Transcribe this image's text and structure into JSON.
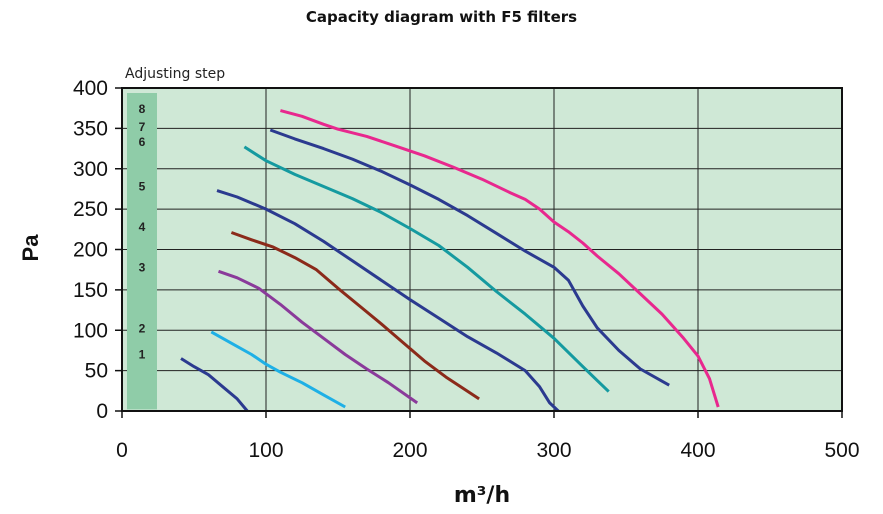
{
  "chart_data": {
    "type": "line",
    "title": "Capacity diagram with F5 filters",
    "xlabel": "m³/h",
    "ylabel": "Pa",
    "xlim": [
      0,
      500
    ],
    "ylim": [
      0,
      400
    ],
    "xticks": [
      "0",
      "100",
      "200",
      "300",
      "400",
      "500"
    ],
    "yticks": [
      "0",
      "50",
      "100",
      "150",
      "200",
      "250",
      "300",
      "350",
      "400"
    ],
    "grid": true,
    "background_color": "#cfe8d6",
    "adjusting_step": {
      "label": "Adjusting step",
      "bar_color": "#8fcca8",
      "steps": [
        {
          "label": "1",
          "y": 70
        },
        {
          "label": "2",
          "y": 102
        },
        {
          "label": "3",
          "y": 178
        },
        {
          "label": "4",
          "y": 228
        },
        {
          "label": "5",
          "y": 278
        },
        {
          "label": "6",
          "y": 333
        },
        {
          "label": "7",
          "y": 352
        },
        {
          "label": "8",
          "y": 374
        }
      ]
    },
    "series": [
      {
        "color": "#2b3a8f",
        "points": [
          [
            41,
            65
          ],
          [
            50,
            55
          ],
          [
            60,
            45
          ],
          [
            70,
            30
          ],
          [
            80,
            15
          ],
          [
            87,
            0
          ]
        ]
      },
      {
        "color": "#1eb0e6",
        "points": [
          [
            62,
            98
          ],
          [
            75,
            85
          ],
          [
            90,
            70
          ],
          [
            100,
            58
          ],
          [
            110,
            48
          ],
          [
            125,
            35
          ],
          [
            140,
            20
          ],
          [
            155,
            5
          ]
        ]
      },
      {
        "color": "#8a3a9a",
        "points": [
          [
            67,
            173
          ],
          [
            80,
            165
          ],
          [
            95,
            152
          ],
          [
            110,
            132
          ],
          [
            125,
            110
          ],
          [
            140,
            90
          ],
          [
            155,
            70
          ],
          [
            170,
            52
          ],
          [
            185,
            35
          ],
          [
            205,
            10
          ]
        ]
      },
      {
        "color": "#8b2a1a",
        "points": [
          [
            76,
            221
          ],
          [
            90,
            212
          ],
          [
            105,
            203
          ],
          [
            120,
            190
          ],
          [
            135,
            175
          ],
          [
            150,
            152
          ],
          [
            165,
            130
          ],
          [
            180,
            108
          ],
          [
            195,
            85
          ],
          [
            210,
            62
          ],
          [
            225,
            42
          ],
          [
            248,
            15
          ]
        ]
      },
      {
        "color": "#2b3a8f",
        "points": [
          [
            66,
            273
          ],
          [
            80,
            265
          ],
          [
            100,
            250
          ],
          [
            120,
            232
          ],
          [
            140,
            210
          ],
          [
            160,
            186
          ],
          [
            180,
            162
          ],
          [
            200,
            138
          ],
          [
            220,
            115
          ],
          [
            240,
            92
          ],
          [
            260,
            72
          ],
          [
            280,
            50
          ],
          [
            290,
            30
          ],
          [
            297,
            10
          ],
          [
            303,
            0
          ]
        ]
      },
      {
        "color": "#159aa0",
        "points": [
          [
            85,
            327
          ],
          [
            100,
            310
          ],
          [
            120,
            293
          ],
          [
            140,
            278
          ],
          [
            160,
            263
          ],
          [
            180,
            246
          ],
          [
            200,
            226
          ],
          [
            220,
            205
          ],
          [
            240,
            178
          ],
          [
            260,
            148
          ],
          [
            280,
            120
          ],
          [
            300,
            90
          ],
          [
            320,
            55
          ],
          [
            338,
            24
          ]
        ]
      },
      {
        "color": "#2b3a8f",
        "points": [
          [
            103,
            348
          ],
          [
            120,
            337
          ],
          [
            140,
            325
          ],
          [
            160,
            312
          ],
          [
            180,
            297
          ],
          [
            200,
            280
          ],
          [
            220,
            262
          ],
          [
            240,
            242
          ],
          [
            260,
            220
          ],
          [
            280,
            198
          ],
          [
            300,
            178
          ],
          [
            310,
            162
          ],
          [
            320,
            130
          ],
          [
            330,
            103
          ],
          [
            345,
            75
          ],
          [
            360,
            52
          ],
          [
            380,
            32
          ]
        ]
      },
      {
        "color": "#e8288e",
        "points": [
          [
            110,
            372
          ],
          [
            125,
            365
          ],
          [
            140,
            355
          ],
          [
            150,
            349
          ],
          [
            170,
            340
          ],
          [
            190,
            328
          ],
          [
            210,
            316
          ],
          [
            230,
            302
          ],
          [
            250,
            287
          ],
          [
            270,
            270
          ],
          [
            280,
            262
          ],
          [
            290,
            250
          ],
          [
            300,
            234
          ],
          [
            310,
            222
          ],
          [
            320,
            208
          ],
          [
            330,
            192
          ],
          [
            345,
            170
          ],
          [
            360,
            145
          ],
          [
            375,
            120
          ],
          [
            390,
            90
          ],
          [
            400,
            68
          ],
          [
            408,
            40
          ],
          [
            414,
            5
          ]
        ]
      }
    ]
  }
}
